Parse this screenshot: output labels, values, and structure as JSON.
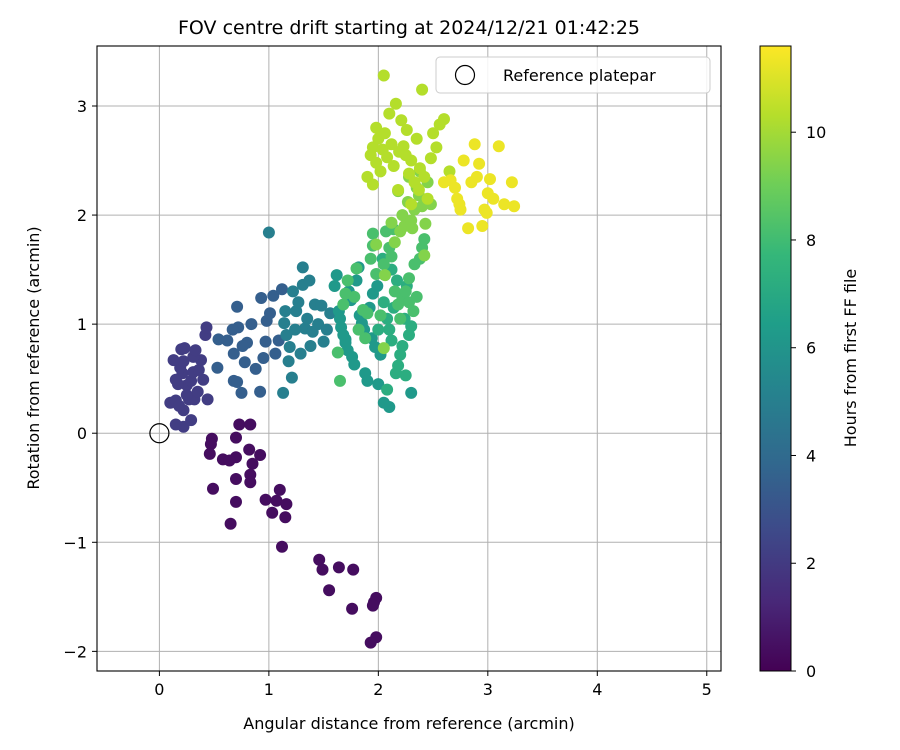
{
  "chart_data": {
    "type": "scatter",
    "title": "FOV centre drift starting at 2024/12/21 01:42:25",
    "xlabel": "Angular distance from reference (arcmin)",
    "ylabel": "Rotation from reference (arcmin)",
    "xlim": [
      -0.57,
      5.13
    ],
    "ylim": [
      -2.18,
      3.55
    ],
    "xticks": [
      0,
      1,
      2,
      3,
      4,
      5
    ],
    "yticks": [
      -2,
      -1,
      0,
      1,
      2,
      3
    ],
    "xtick_labels": [
      "0",
      "1",
      "2",
      "3",
      "4",
      "5"
    ],
    "ytick_labels": [
      "−2",
      "−1",
      "0",
      "1",
      "2",
      "3"
    ],
    "grid": true,
    "legend": {
      "label": "Reference platepar",
      "placement": "top-right"
    },
    "reference_point": {
      "x": 0,
      "y": 0
    },
    "colorbar": {
      "label": "Hours from first FF file",
      "colormap": "viridis",
      "range": [
        0,
        11.6
      ],
      "ticks": [
        0,
        2,
        4,
        6,
        8,
        10
      ],
      "tick_labels": [
        "0",
        "2",
        "4",
        "6",
        "8",
        "10"
      ]
    },
    "points": [
      [
        0.73,
        0.08,
        0.4
      ],
      [
        0.83,
        0.08,
        0.4
      ],
      [
        0.48,
        -0.05,
        0.4
      ],
      [
        0.7,
        -0.04,
        0.4
      ],
      [
        0.47,
        -0.1,
        0.4
      ],
      [
        0.82,
        -0.15,
        0.4
      ],
      [
        0.46,
        -0.19,
        0.4
      ],
      [
        0.7,
        -0.22,
        0.4
      ],
      [
        0.92,
        -0.2,
        0.4
      ],
      [
        0.58,
        -0.24,
        0.4
      ],
      [
        0.64,
        -0.25,
        0.4
      ],
      [
        0.85,
        -0.28,
        0.4
      ],
      [
        0.83,
        -0.38,
        0.4
      ],
      [
        0.7,
        -0.42,
        0.4
      ],
      [
        0.83,
        -0.45,
        0.4
      ],
      [
        0.49,
        -0.51,
        0.4
      ],
      [
        1.1,
        -0.52,
        0.4
      ],
      [
        0.97,
        -0.61,
        0.4
      ],
      [
        0.7,
        -0.63,
        0.4
      ],
      [
        1.07,
        -0.62,
        0.4
      ],
      [
        1.16,
        -0.65,
        0.4
      ],
      [
        1.03,
        -0.73,
        0.4
      ],
      [
        1.15,
        -0.77,
        0.4
      ],
      [
        0.65,
        -0.83,
        0.4
      ],
      [
        1.12,
        -1.04,
        0.4
      ],
      [
        1.46,
        -1.16,
        0.4
      ],
      [
        1.49,
        -1.25,
        0.4
      ],
      [
        1.64,
        -1.23,
        0.4
      ],
      [
        1.77,
        -1.25,
        0.4
      ],
      [
        1.55,
        -1.44,
        0.4
      ],
      [
        1.98,
        -1.51,
        0.4
      ],
      [
        1.96,
        -1.55,
        0.4
      ],
      [
        1.76,
        -1.61,
        0.4
      ],
      [
        1.95,
        -1.58,
        0.4
      ],
      [
        1.98,
        -1.87,
        0.4
      ],
      [
        1.93,
        -1.92,
        0.4
      ],
      [
        0.1,
        0.28,
        2.1
      ],
      [
        0.15,
        0.3,
        2.1
      ],
      [
        0.22,
        0.06,
        2.1
      ],
      [
        0.15,
        0.08,
        2.1
      ],
      [
        0.29,
        0.12,
        2.1
      ],
      [
        0.22,
        0.21,
        2.1
      ],
      [
        0.18,
        0.25,
        2.1
      ],
      [
        0.27,
        0.31,
        2.1
      ],
      [
        0.32,
        0.31,
        2.1
      ],
      [
        0.44,
        0.31,
        2.1
      ],
      [
        0.35,
        0.38,
        2.1
      ],
      [
        0.25,
        0.44,
        2.1
      ],
      [
        0.17,
        0.45,
        2.1
      ],
      [
        0.29,
        0.48,
        2.1
      ],
      [
        0.4,
        0.49,
        2.1
      ],
      [
        0.21,
        0.55,
        2.1
      ],
      [
        0.31,
        0.56,
        2.1
      ],
      [
        0.19,
        0.6,
        2.1
      ],
      [
        0.36,
        0.58,
        2.1
      ],
      [
        0.22,
        0.66,
        2.1
      ],
      [
        0.13,
        0.67,
        2.1
      ],
      [
        0.38,
        0.67,
        2.1
      ],
      [
        0.31,
        0.7,
        2.1
      ],
      [
        0.23,
        0.78,
        2.1
      ],
      [
        0.33,
        0.76,
        2.1
      ],
      [
        0.42,
        0.9,
        2.1
      ],
      [
        0.43,
        0.97,
        2.1
      ],
      [
        0.2,
        0.77,
        2.1
      ],
      [
        0.15,
        0.49,
        2.1
      ],
      [
        0.25,
        0.35,
        2.1
      ],
      [
        0.53,
        0.6,
        3.5
      ],
      [
        0.54,
        0.86,
        3.5
      ],
      [
        0.62,
        0.85,
        3.5
      ],
      [
        0.68,
        0.48,
        3.5
      ],
      [
        0.71,
        0.47,
        3.5
      ],
      [
        0.75,
        0.37,
        3.5
      ],
      [
        0.68,
        0.73,
        3.5
      ],
      [
        0.72,
        0.97,
        3.5
      ],
      [
        0.78,
        0.65,
        3.5
      ],
      [
        0.8,
        0.83,
        3.5
      ],
      [
        0.84,
        1.0,
        3.5
      ],
      [
        0.71,
        1.16,
        3.5
      ],
      [
        0.88,
        0.59,
        3.5
      ],
      [
        0.92,
        0.38,
        3.5
      ],
      [
        0.95,
        0.69,
        3.5
      ],
      [
        0.97,
        0.84,
        3.5
      ],
      [
        0.98,
        1.03,
        3.5
      ],
      [
        0.93,
        1.24,
        3.5
      ],
      [
        1.01,
        1.1,
        3.5
      ],
      [
        1.04,
        1.26,
        3.5
      ],
      [
        1.06,
        0.73,
        3.5
      ],
      [
        1.09,
        0.85,
        3.5
      ],
      [
        1.12,
        1.32,
        3.5
      ],
      [
        0.67,
        0.95,
        3.5
      ],
      [
        0.76,
        0.8,
        3.5
      ],
      [
        1.0,
        1.84,
        5.0
      ],
      [
        1.14,
        1.01,
        5.0
      ],
      [
        1.16,
        0.9,
        5.0
      ],
      [
        1.18,
        0.66,
        5.0
      ],
      [
        1.22,
        1.3,
        5.0
      ],
      [
        1.25,
        1.12,
        5.0
      ],
      [
        1.27,
        1.2,
        5.0
      ],
      [
        1.29,
        0.73,
        5.0
      ],
      [
        1.31,
        1.36,
        5.0
      ],
      [
        1.31,
        1.52,
        5.0
      ],
      [
        1.33,
        0.96,
        5.0
      ],
      [
        1.35,
        1.05,
        5.0
      ],
      [
        1.38,
        0.8,
        5.0
      ],
      [
        1.4,
        0.93,
        5.0
      ],
      [
        1.42,
        1.18,
        5.0
      ],
      [
        1.45,
        1.0,
        5.0
      ],
      [
        1.48,
        1.17,
        5.0
      ],
      [
        1.5,
        0.84,
        5.0
      ],
      [
        1.53,
        0.95,
        5.0
      ],
      [
        1.56,
        1.1,
        5.0
      ],
      [
        1.13,
        0.37,
        5.0
      ],
      [
        1.21,
        0.51,
        5.0
      ],
      [
        1.15,
        1.12,
        5.0
      ],
      [
        1.24,
        0.95,
        5.0
      ],
      [
        1.19,
        0.79,
        5.0
      ],
      [
        1.37,
        1.4,
        5.0
      ],
      [
        1.6,
        1.35,
        6.2
      ],
      [
        1.62,
        1.45,
        6.2
      ],
      [
        1.64,
        1.12,
        6.2
      ],
      [
        1.65,
        1.05,
        6.2
      ],
      [
        1.66,
        0.97,
        6.2
      ],
      [
        1.68,
        0.9,
        6.2
      ],
      [
        1.7,
        0.83,
        6.2
      ],
      [
        1.72,
        0.76,
        6.2
      ],
      [
        1.73,
        1.3,
        6.2
      ],
      [
        1.75,
        1.22,
        6.2
      ],
      [
        1.76,
        0.7,
        6.2
      ],
      [
        1.78,
        0.63,
        6.2
      ],
      [
        1.8,
        1.4,
        6.2
      ],
      [
        1.82,
        1.52,
        6.2
      ],
      [
        1.83,
        1.08,
        6.2
      ],
      [
        1.85,
        1.01,
        6.2
      ],
      [
        1.87,
        0.95,
        6.2
      ],
      [
        1.88,
        0.55,
        6.2
      ],
      [
        1.9,
        0.48,
        6.2
      ],
      [
        1.92,
        1.15,
        6.2
      ],
      [
        1.94,
        0.87,
        6.2
      ],
      [
        1.95,
        1.28,
        6.2
      ],
      [
        1.97,
        0.79,
        6.2
      ],
      [
        1.99,
        1.35,
        6.2
      ],
      [
        2.0,
        0.45,
        6.2
      ],
      [
        2.02,
        0.72,
        6.2
      ],
      [
        2.05,
        0.28,
        6.2
      ],
      [
        2.1,
        0.24,
        6.2
      ],
      [
        2.3,
        0.37,
        6.2
      ],
      [
        1.7,
        0.86,
        6.2
      ],
      [
        2.05,
        1.2,
        7.2
      ],
      [
        2.08,
        1.05,
        7.2
      ],
      [
        2.1,
        0.95,
        7.2
      ],
      [
        2.12,
        0.85,
        7.2
      ],
      [
        2.14,
        1.15,
        7.2
      ],
      [
        2.16,
        0.55,
        7.2
      ],
      [
        2.18,
        0.62,
        7.2
      ],
      [
        2.2,
        0.72,
        7.2
      ],
      [
        2.22,
        0.8,
        7.2
      ],
      [
        2.24,
        1.05,
        7.2
      ],
      [
        2.26,
        1.35,
        7.2
      ],
      [
        2.28,
        0.9,
        7.2
      ],
      [
        2.3,
        0.98,
        7.2
      ],
      [
        2.04,
        1.6,
        7.2
      ],
      [
        2.06,
        1.45,
        7.2
      ],
      [
        2.12,
        1.5,
        7.2
      ],
      [
        2.17,
        1.4,
        7.2
      ],
      [
        2.25,
        0.53,
        7.2
      ],
      [
        2.0,
        0.95,
        7.2
      ],
      [
        2.08,
        0.4,
        7.2
      ],
      [
        1.63,
        0.74,
        8.2
      ],
      [
        1.65,
        0.48,
        8.2
      ],
      [
        1.68,
        1.18,
        8.2
      ],
      [
        1.7,
        1.28,
        8.2
      ],
      [
        1.72,
        1.4,
        8.2
      ],
      [
        1.78,
        1.25,
        8.2
      ],
      [
        1.8,
        1.51,
        8.2
      ],
      [
        1.82,
        0.95,
        8.2
      ],
      [
        1.86,
        1.13,
        8.2
      ],
      [
        1.88,
        0.87,
        8.2
      ],
      [
        1.9,
        1.1,
        8.2
      ],
      [
        1.93,
        1.6,
        8.2
      ],
      [
        1.95,
        1.72,
        8.2
      ],
      [
        1.98,
        1.46,
        8.2
      ],
      [
        2.02,
        1.08,
        8.2
      ],
      [
        2.05,
        1.55,
        8.2
      ],
      [
        2.07,
        1.85,
        8.2
      ],
      [
        2.1,
        1.7,
        8.2
      ],
      [
        2.12,
        1.62,
        8.2
      ],
      [
        2.15,
        1.3,
        8.2
      ],
      [
        2.18,
        1.18,
        8.2
      ],
      [
        2.2,
        1.05,
        8.2
      ],
      [
        2.22,
        1.24,
        8.2
      ],
      [
        2.25,
        1.3,
        8.2
      ],
      [
        2.28,
        1.2,
        8.2
      ],
      [
        2.32,
        1.12,
        8.2
      ],
      [
        2.35,
        1.25,
        8.2
      ],
      [
        2.38,
        1.6,
        8.2
      ],
      [
        2.4,
        1.7,
        8.2
      ],
      [
        2.42,
        1.78,
        8.2
      ],
      [
        2.33,
        1.55,
        8.2
      ],
      [
        2.28,
        1.42,
        8.2
      ],
      [
        2.14,
        1.87,
        8.2
      ],
      [
        1.95,
        1.83,
        8.2
      ],
      [
        2.05,
        0.78,
        9.4
      ],
      [
        2.2,
        1.85,
        9.4
      ],
      [
        2.22,
        2.0,
        9.4
      ],
      [
        2.24,
        1.9,
        9.4
      ],
      [
        2.27,
        2.12,
        9.4
      ],
      [
        2.3,
        1.95,
        9.4
      ],
      [
        2.33,
        2.05,
        9.4
      ],
      [
        2.35,
        2.25,
        9.4
      ],
      [
        2.37,
        2.18,
        9.4
      ],
      [
        2.4,
        2.08,
        9.4
      ],
      [
        2.42,
        1.63,
        9.4
      ],
      [
        2.18,
        2.22,
        9.4
      ],
      [
        2.28,
        2.35,
        9.4
      ],
      [
        2.38,
        2.4,
        9.4
      ],
      [
        2.45,
        2.3,
        9.4
      ],
      [
        2.48,
        2.1,
        9.4
      ],
      [
        2.15,
        1.75,
        9.4
      ],
      [
        2.43,
        1.92,
        9.4
      ],
      [
        2.31,
        1.88,
        9.4
      ],
      [
        2.12,
        1.93,
        9.4
      ],
      [
        1.98,
        1.73,
        9.4
      ],
      [
        2.06,
        1.45,
        9.4
      ],
      [
        1.9,
        2.35,
        10.3
      ],
      [
        1.93,
        2.55,
        10.3
      ],
      [
        1.95,
        2.62,
        10.3
      ],
      [
        1.98,
        2.48,
        10.3
      ],
      [
        2.0,
        2.7,
        10.3
      ],
      [
        2.02,
        2.4,
        10.3
      ],
      [
        2.04,
        2.6,
        10.3
      ],
      [
        2.06,
        2.75,
        10.3
      ],
      [
        2.08,
        2.53,
        10.3
      ],
      [
        2.1,
        2.93,
        10.3
      ],
      [
        2.12,
        2.65,
        10.3
      ],
      [
        2.14,
        2.45,
        10.3
      ],
      [
        2.16,
        3.02,
        10.3
      ],
      [
        2.19,
        2.58,
        10.3
      ],
      [
        2.21,
        2.87,
        10.3
      ],
      [
        2.23,
        2.63,
        10.3
      ],
      [
        2.26,
        2.78,
        10.3
      ],
      [
        2.28,
        2.38,
        10.3
      ],
      [
        2.3,
        2.5,
        10.3
      ],
      [
        2.33,
        2.3,
        10.3
      ],
      [
        2.35,
        2.7,
        10.3
      ],
      [
        2.38,
        2.43,
        10.3
      ],
      [
        2.4,
        3.15,
        10.3
      ],
      [
        2.42,
        2.35,
        10.3
      ],
      [
        2.45,
        2.15,
        10.3
      ],
      [
        2.48,
        2.52,
        10.3
      ],
      [
        2.5,
        2.75,
        10.3
      ],
      [
        2.53,
        2.62,
        10.3
      ],
      [
        2.56,
        2.83,
        10.3
      ],
      [
        2.6,
        2.88,
        10.3
      ],
      [
        2.05,
        3.28,
        10.3
      ],
      [
        2.65,
        2.4,
        10.3
      ],
      [
        1.98,
        2.8,
        10.3
      ],
      [
        2.18,
        2.23,
        10.3
      ],
      [
        2.3,
        2.1,
        10.3
      ],
      [
        2.37,
        2.23,
        10.3
      ],
      [
        1.95,
        2.28,
        10.3
      ],
      [
        2.25,
        2.55,
        10.3
      ],
      [
        2.66,
        2.32,
        11.3
      ],
      [
        2.7,
        2.25,
        11.3
      ],
      [
        2.72,
        2.15,
        11.3
      ],
      [
        2.75,
        2.05,
        11.3
      ],
      [
        2.78,
        2.5,
        11.3
      ],
      [
        2.82,
        1.88,
        11.3
      ],
      [
        2.85,
        2.3,
        11.3
      ],
      [
        2.88,
        2.65,
        11.3
      ],
      [
        2.9,
        2.35,
        11.3
      ],
      [
        2.92,
        2.47,
        11.3
      ],
      [
        2.95,
        1.9,
        11.3
      ],
      [
        2.97,
        2.05,
        11.3
      ],
      [
        3.0,
        2.2,
        11.3
      ],
      [
        3.02,
        2.33,
        11.3
      ],
      [
        3.05,
        2.15,
        11.3
      ],
      [
        3.1,
        2.63,
        11.3
      ],
      [
        3.15,
        2.1,
        11.3
      ],
      [
        3.22,
        2.3,
        11.3
      ],
      [
        3.24,
        2.08,
        11.3
      ],
      [
        2.6,
        2.3,
        11.3
      ],
      [
        2.74,
        2.1,
        11.3
      ],
      [
        2.99,
        2.02,
        11.3
      ]
    ]
  }
}
